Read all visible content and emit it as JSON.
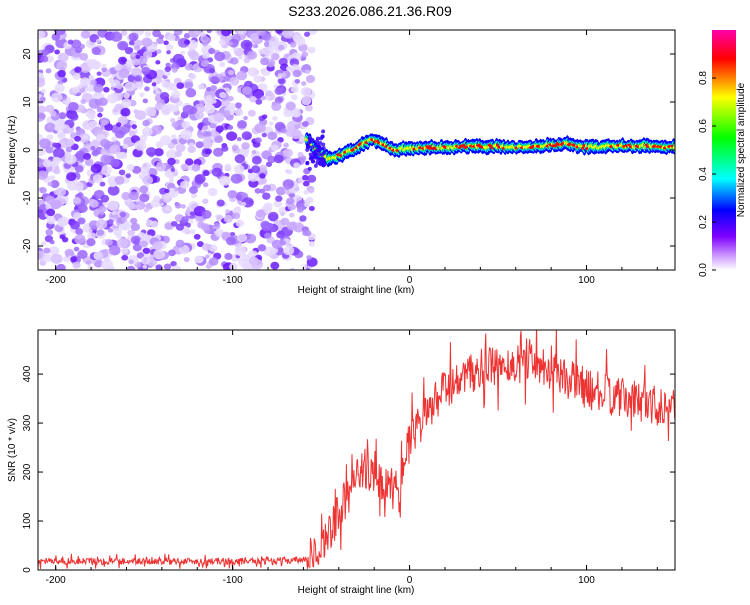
{
  "title": "S233.2026.086.21.36.R09",
  "chart_data": [
    {
      "type": "heatmap",
      "xlabel": "Height of straight line (km)",
      "ylabel": "Frequency (Hz)",
      "xlim": [
        -210,
        150
      ],
      "ylim": [
        -25,
        25
      ],
      "xticks": [
        -200,
        -100,
        0,
        100
      ],
      "yticks": [
        -20,
        -10,
        0,
        10,
        20
      ],
      "noise_region_x": [
        -210,
        -55
      ],
      "ridge": {
        "x": [
          -58,
          -52,
          -48,
          -44,
          -40,
          -35,
          -30,
          -25,
          -20,
          -16,
          -12,
          -8,
          -4,
          0,
          10,
          20,
          30,
          40,
          50,
          60,
          70,
          80,
          88,
          92,
          100,
          110,
          120,
          130,
          140,
          150
        ],
        "y": [
          2.5,
          -0.5,
          -1.5,
          -2.0,
          -1.2,
          -0.5,
          0.5,
          1.5,
          2.2,
          1.5,
          0.5,
          0.0,
          0.2,
          0.3,
          0.5,
          0.5,
          0.7,
          0.8,
          0.7,
          0.6,
          0.8,
          1.0,
          1.3,
          1.0,
          0.6,
          0.7,
          0.8,
          0.8,
          0.8,
          0.7
        ]
      },
      "colorbar": {
        "label": "Normalized spectral amplitude",
        "range": [
          0.0,
          1.0
        ],
        "ticks": [
          "0.0",
          "0.2",
          "0.4",
          "0.6",
          "0.8"
        ],
        "colors": [
          "#ffffff",
          "#cc99ff",
          "#7f00ff",
          "#0000ff",
          "#00ffff",
          "#00ff00",
          "#ffff00",
          "#ff0000",
          "#ff00aa"
        ]
      }
    },
    {
      "type": "line",
      "xlabel": "Height of straight line (km)",
      "ylabel": "SNR (10 * v/v)",
      "xlim": [
        -210,
        150
      ],
      "ylim": [
        0,
        490
      ],
      "xticks": [
        -200,
        -100,
        0,
        100
      ],
      "yticks": [
        0,
        100,
        200,
        300,
        400
      ],
      "color": "#ee3333",
      "anchors": {
        "x": [
          -210,
          -100,
          -58,
          -47,
          -40,
          -32,
          -25,
          -15,
          -5,
          0,
          10,
          20,
          30,
          40,
          50,
          60,
          70,
          80,
          90,
          100,
          110,
          120,
          130,
          140,
          150
        ],
        "y": [
          18,
          18,
          20,
          60,
          120,
          170,
          210,
          170,
          200,
          260,
          320,
          370,
          390,
          410,
          415,
          420,
          430,
          410,
          390,
          370,
          360,
          350,
          345,
          340,
          330
        ]
      },
      "noise_amplitude": [
        10,
        60
      ]
    }
  ]
}
